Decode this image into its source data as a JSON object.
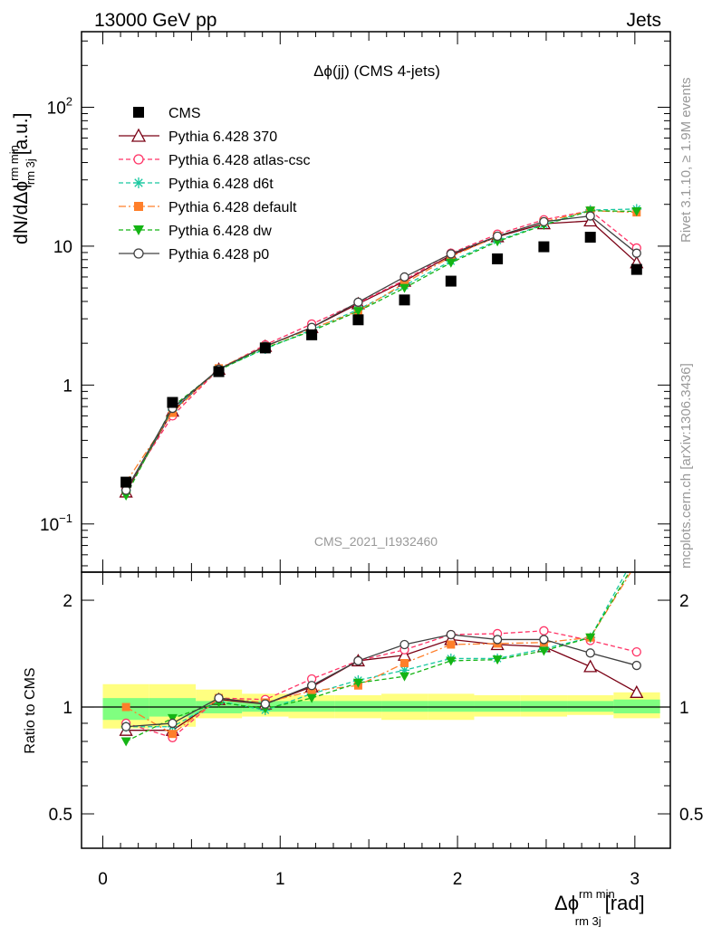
{
  "header": {
    "left": "13000 GeV pp",
    "right": "Jets"
  },
  "side_text": {
    "rivet": "Rivet 3.1.10, ≥ 1.9M events",
    "mcplots": "mcplots.cern.ch [arXiv:1306.3436]"
  },
  "watermark": "CMS_2021_I1932460",
  "colors": {
    "CMS": "#000000",
    "p370": "#7a0014",
    "atlas": "#ff3366",
    "d6t": "#19c8a0",
    "default": "#ff7f2a",
    "dw": "#14b414",
    "p0": "#404040",
    "band_outer": "#ffff80",
    "band_inner": "#80ff80"
  },
  "chart_data": [
    {
      "type": "line",
      "title": "Δϕ(jj) (CMS 4-jets)",
      "ylabel_main": "dN/dΔϕ",
      "ylabel_sup": "rm min",
      "ylabel_sub": "rm 3j",
      "ylabel_tail": "[a.u.]",
      "yscale": "log",
      "ylim": [
        0.045,
        350
      ],
      "xlim": [
        -0.12,
        3.2
      ],
      "ytick_labels": [
        {
          "base": "10",
          "exp": "−1",
          "value": 0.1
        },
        {
          "base": "1",
          "exp": "",
          "value": 1
        },
        {
          "base": "10",
          "exp": "",
          "value": 10
        },
        {
          "base": "10",
          "exp": "2",
          "value": 100
        }
      ],
      "x": [
        0.131,
        0.393,
        0.654,
        0.916,
        1.178,
        1.44,
        1.701,
        1.963,
        2.225,
        2.487,
        2.749,
        3.01
      ],
      "series": [
        {
          "name": "CMS",
          "key": "CMS",
          "style": "data",
          "values": [
            0.2,
            0.75,
            1.25,
            1.85,
            2.3,
            2.95,
            4.1,
            5.6,
            8.1,
            9.9,
            11.6,
            6.8
          ]
        },
        {
          "name": "Pythia 6.428 370",
          "key": "p370",
          "style": "solid",
          "marker": "triangle-open",
          "values": [
            0.17,
            0.65,
            1.3,
            1.9,
            2.6,
            3.85,
            5.6,
            8.6,
            11.7,
            14.5,
            15.2,
            7.6
          ]
        },
        {
          "name": "Pythia 6.428 atlas-csc",
          "key": "atlas",
          "style": "dashed",
          "marker": "circle-open",
          "values": [
            0.18,
            0.6,
            1.3,
            1.95,
            2.75,
            3.9,
            5.7,
            8.9,
            12.2,
            15.5,
            18.0,
            9.7
          ]
        },
        {
          "name": "Pythia 6.428 d6t",
          "key": "d6t",
          "style": "dashed",
          "marker": "star",
          "values": [
            0.175,
            0.66,
            1.3,
            1.82,
            2.5,
            3.5,
            5.2,
            7.8,
            11.0,
            14.3,
            18.2,
            18.5
          ]
        },
        {
          "name": "Pythia 6.428 default",
          "key": "default",
          "style": "dashdot",
          "marker": "square",
          "values": [
            0.2,
            0.63,
            1.32,
            1.9,
            2.55,
            3.4,
            5.4,
            8.4,
            11.8,
            15.0,
            18.0,
            17.5
          ]
        },
        {
          "name": "Pythia 6.428 dw",
          "key": "dw",
          "style": "dashed",
          "marker": "triangle-down",
          "values": [
            0.16,
            0.7,
            1.28,
            1.85,
            2.45,
            3.4,
            5.0,
            7.6,
            10.8,
            14.2,
            18.0,
            17.8
          ]
        },
        {
          "name": "Pythia 6.428 p0",
          "key": "p0",
          "style": "solid",
          "marker": "circle-open",
          "values": [
            0.175,
            0.68,
            1.3,
            1.9,
            2.6,
            3.95,
            6.0,
            8.8,
            11.8,
            15.0,
            16.5,
            8.9
          ]
        }
      ]
    },
    {
      "type": "line",
      "ylabel": "Ratio to CMS",
      "xlabel_main": "Δϕ",
      "xlabel_sup": "rm min",
      "xlabel_sub": "rm 3j",
      "xlabel_tail": "[rad]",
      "yscale": "log",
      "ylim": [
        0.4,
        2.4
      ],
      "xlim": [
        -0.12,
        3.2
      ],
      "xticks": [
        0,
        1,
        2,
        3
      ],
      "xtick_labels": [
        "0",
        "1",
        "2",
        "3"
      ],
      "yticks": [
        0.5,
        1,
        2
      ],
      "ytick_labels": [
        "0.5",
        "1",
        "2"
      ],
      "x": [
        0.131,
        0.393,
        0.654,
        0.916,
        1.178,
        1.44,
        1.701,
        1.963,
        2.225,
        2.487,
        2.749,
        3.01
      ],
      "bin_edges": [
        0.0,
        0.262,
        0.524,
        0.785,
        1.047,
        1.309,
        1.571,
        1.833,
        2.094,
        2.356,
        2.618,
        2.88,
        3.142
      ],
      "band_outer": [
        [
          0.87,
          1.16
        ],
        [
          0.88,
          1.16
        ],
        [
          0.93,
          1.12
        ],
        [
          0.94,
          1.09
        ],
        [
          0.93,
          1.08
        ],
        [
          0.93,
          1.08
        ],
        [
          0.92,
          1.09
        ],
        [
          0.92,
          1.09
        ],
        [
          0.94,
          1.08
        ],
        [
          0.94,
          1.08
        ],
        [
          0.95,
          1.08
        ],
        [
          0.93,
          1.1
        ]
      ],
      "band_inner": [
        [
          0.92,
          1.06
        ],
        [
          0.94,
          1.06
        ],
        [
          0.96,
          1.04
        ],
        [
          0.97,
          1.04
        ],
        [
          0.97,
          1.04
        ],
        [
          0.97,
          1.04
        ],
        [
          0.97,
          1.04
        ],
        [
          0.97,
          1.04
        ],
        [
          0.97,
          1.04
        ],
        [
          0.97,
          1.04
        ],
        [
          0.97,
          1.04
        ],
        [
          0.96,
          1.05
        ]
      ],
      "series": [
        {
          "name": "Pythia 6.428 370",
          "key": "p370",
          "style": "solid",
          "marker": "triangle-open",
          "values": [
            0.86,
            0.86,
            1.05,
            1.02,
            1.14,
            1.35,
            1.4,
            1.55,
            1.5,
            1.48,
            1.3,
            1.1
          ]
        },
        {
          "name": "Pythia 6.428 atlas-csc",
          "key": "atlas",
          "style": "dashed",
          "marker": "circle-open",
          "values": [
            0.9,
            0.82,
            1.06,
            1.05,
            1.2,
            1.35,
            1.45,
            1.6,
            1.61,
            1.64,
            1.54,
            1.43
          ]
        },
        {
          "name": "Pythia 6.428 d6t",
          "key": "d6t",
          "style": "dashed",
          "marker": "star",
          "values": [
            0.88,
            0.88,
            1.04,
            0.98,
            1.09,
            1.19,
            1.27,
            1.37,
            1.37,
            1.46,
            1.57,
            2.72
          ]
        },
        {
          "name": "Pythia 6.428 default",
          "key": "default",
          "style": "dashdot",
          "marker": "square",
          "values": [
            1.0,
            0.84,
            1.06,
            1.03,
            1.11,
            1.15,
            1.33,
            1.5,
            1.51,
            1.52,
            1.57,
            2.55
          ]
        },
        {
          "name": "Pythia 6.428 dw",
          "key": "dw",
          "style": "dashed",
          "marker": "triangle-down",
          "values": [
            0.8,
            0.93,
            1.03,
            0.99,
            1.06,
            1.17,
            1.22,
            1.35,
            1.36,
            1.44,
            1.57,
            2.6
          ]
        },
        {
          "name": "Pythia 6.428 p0",
          "key": "p0",
          "style": "solid",
          "marker": "circle-open",
          "values": [
            0.88,
            0.9,
            1.06,
            1.02,
            1.15,
            1.35,
            1.5,
            1.6,
            1.55,
            1.55,
            1.42,
            1.31
          ]
        }
      ]
    }
  ]
}
